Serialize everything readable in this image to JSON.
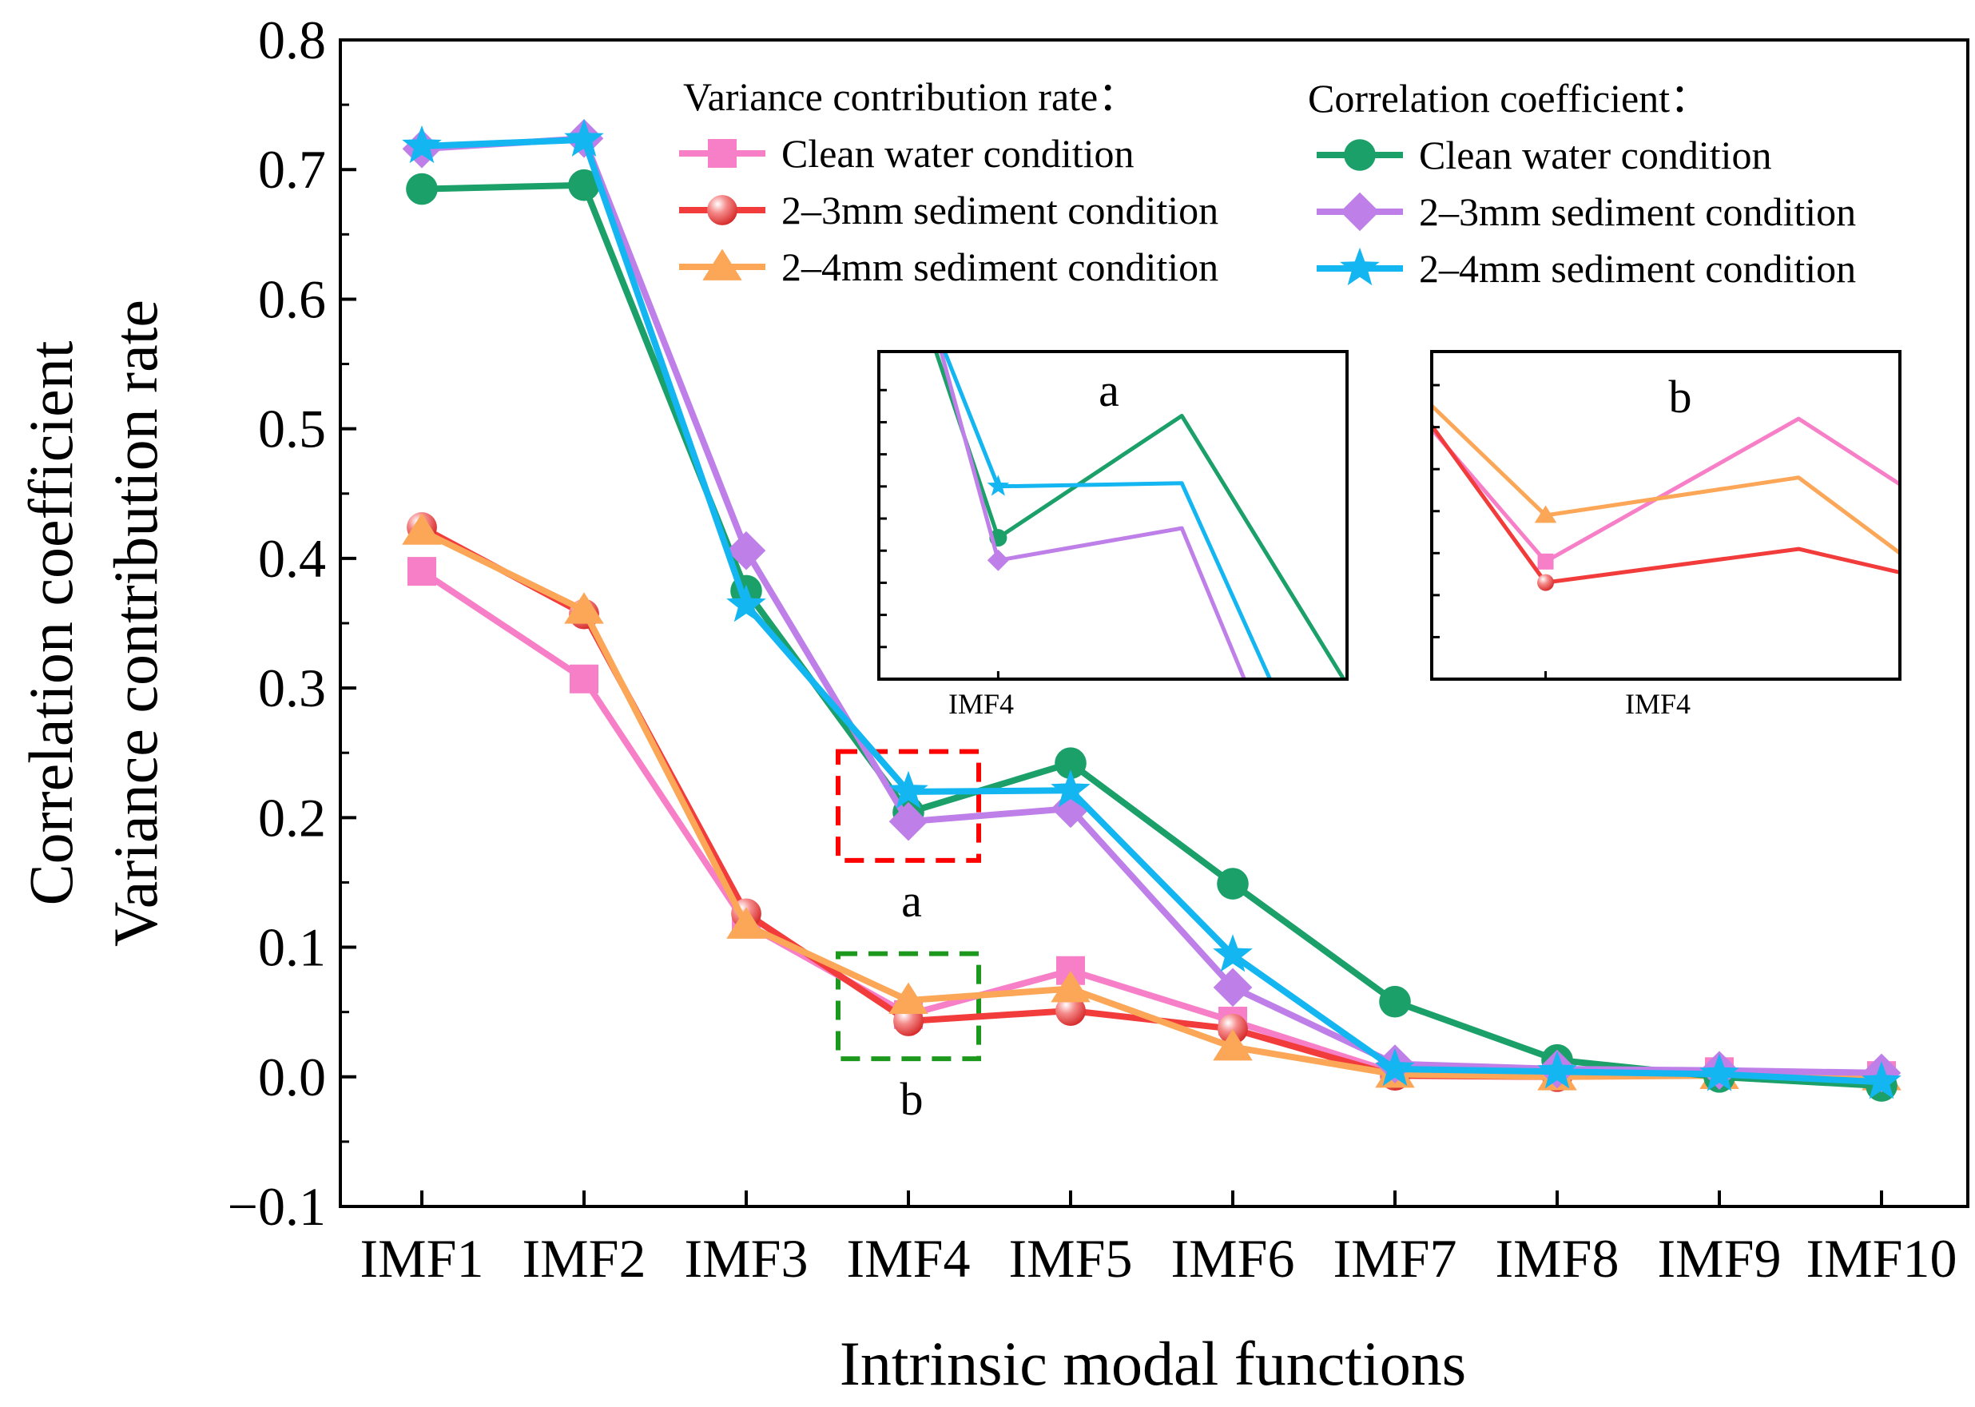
{
  "chart_data": {
    "type": "line",
    "title": "",
    "xlabel": "Intrinsic modal functions",
    "ylabel_lines": [
      "Correlation coefficient",
      "Variance contribution rate"
    ],
    "categories": [
      "IMF1",
      "IMF2",
      "IMF3",
      "IMF4",
      "IMF5",
      "IMF6",
      "IMF7",
      "IMF8",
      "IMF9",
      "IMF10"
    ],
    "ylim": [
      -0.1,
      0.8
    ],
    "yticks": [
      -0.1,
      0.0,
      0.1,
      0.2,
      0.3,
      0.4,
      0.5,
      0.6,
      0.7,
      0.8
    ],
    "ytick_labels": [
      "−0.1",
      "0.0",
      "0.1",
      "0.2",
      "0.3",
      "0.4",
      "0.5",
      "0.6",
      "0.7",
      "0.8"
    ],
    "grid": false,
    "legend": {
      "placement": "top-right",
      "group_titles": [
        "Variance contribution rate：",
        "Correlation coefficient："
      ]
    },
    "series": [
      {
        "id": "vcr-clean",
        "group": "Variance contribution rate",
        "name": "Clean water condition",
        "color": "#f77fc8",
        "marker": "square",
        "values": [
          0.39,
          0.307,
          0.118,
          0.048,
          0.082,
          0.043,
          0.003,
          0.001,
          0.004,
          0.001
        ]
      },
      {
        "id": "vcr-23",
        "group": "Variance contribution rate",
        "name": "2–3mm sediment condition",
        "color": "#f23c3c",
        "marker": "sphere",
        "values": [
          0.424,
          0.357,
          0.126,
          0.043,
          0.051,
          0.037,
          0.001,
          0.0,
          0.002,
          0.0
        ]
      },
      {
        "id": "vcr-24",
        "group": "Variance contribution rate",
        "name": "2–4mm sediment condition",
        "color": "#fca658",
        "marker": "triangle",
        "values": [
          0.421,
          0.36,
          0.117,
          0.059,
          0.068,
          0.023,
          0.002,
          0.0,
          0.001,
          0.0
        ]
      },
      {
        "id": "cc-clean",
        "group": "Correlation coefficient",
        "name": "Clean water condition",
        "color": "#1aa068",
        "marker": "circle",
        "values": [
          0.685,
          0.688,
          0.375,
          0.204,
          0.242,
          0.149,
          0.058,
          0.013,
          0.0,
          -0.007
        ]
      },
      {
        "id": "cc-23",
        "group": "Correlation coefficient",
        "name": "2–3mm sediment condition",
        "color": "#bf7fe8",
        "marker": "diamond",
        "values": [
          0.716,
          0.724,
          0.406,
          0.197,
          0.207,
          0.069,
          0.01,
          0.006,
          0.005,
          0.003
        ]
      },
      {
        "id": "cc-24",
        "group": "Correlation coefficient",
        "name": "2–4mm sediment condition",
        "color": "#13b6f0",
        "marker": "star",
        "values": [
          0.718,
          0.723,
          0.364,
          0.22,
          0.221,
          0.094,
          0.006,
          0.004,
          0.002,
          -0.004
        ]
      }
    ],
    "annotations": [
      {
        "label": "a",
        "box_color": "#ff0000",
        "category": "IMF4",
        "y_range": [
          0.167,
          0.251
        ]
      },
      {
        "label": "b",
        "box_color": "#1c991c",
        "category": "IMF4",
        "y_range": [
          0.014,
          0.095
        ]
      }
    ],
    "insets": [
      {
        "label": "a",
        "x_tick_label": "IMF4",
        "series": [
          "cc-clean",
          "cc-23",
          "cc-24"
        ]
      },
      {
        "label": "b",
        "x_tick_label": "IMF4",
        "series": [
          "vcr-clean",
          "vcr-23",
          "vcr-24"
        ]
      }
    ]
  }
}
